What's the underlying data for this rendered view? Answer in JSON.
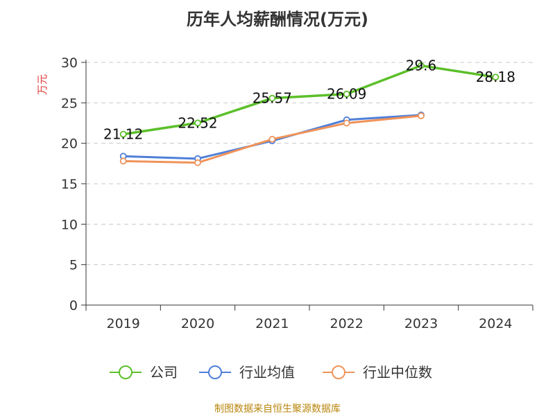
{
  "chart_data": {
    "type": "line",
    "title": "历年人均薪酬情况(万元)",
    "ylabel": "万元",
    "xlabel": "",
    "categories": [
      "2019",
      "2020",
      "2021",
      "2022",
      "2023",
      "2024"
    ],
    "ylim": [
      0,
      30
    ],
    "yticks": [
      0,
      5,
      10,
      15,
      20,
      25,
      30
    ],
    "grid": true,
    "legend_position": "bottom",
    "series": [
      {
        "name": "公司",
        "color": "#5cbf2a",
        "values": [
          21.12,
          22.52,
          25.57,
          26.09,
          29.6,
          28.18
        ],
        "labels": [
          "21.12",
          "22.52",
          "25.57",
          "26.09",
          "29.6",
          "28.18"
        ]
      },
      {
        "name": "行业均值",
        "color": "#4f7fd8",
        "values": [
          18.4,
          18.1,
          20.3,
          22.9,
          23.5,
          null
        ]
      },
      {
        "name": "行业中位数",
        "color": "#f0935a",
        "values": [
          17.8,
          17.6,
          20.5,
          22.5,
          23.4,
          null
        ]
      }
    ]
  },
  "footer": "制图数据来自恒生聚源数据库"
}
